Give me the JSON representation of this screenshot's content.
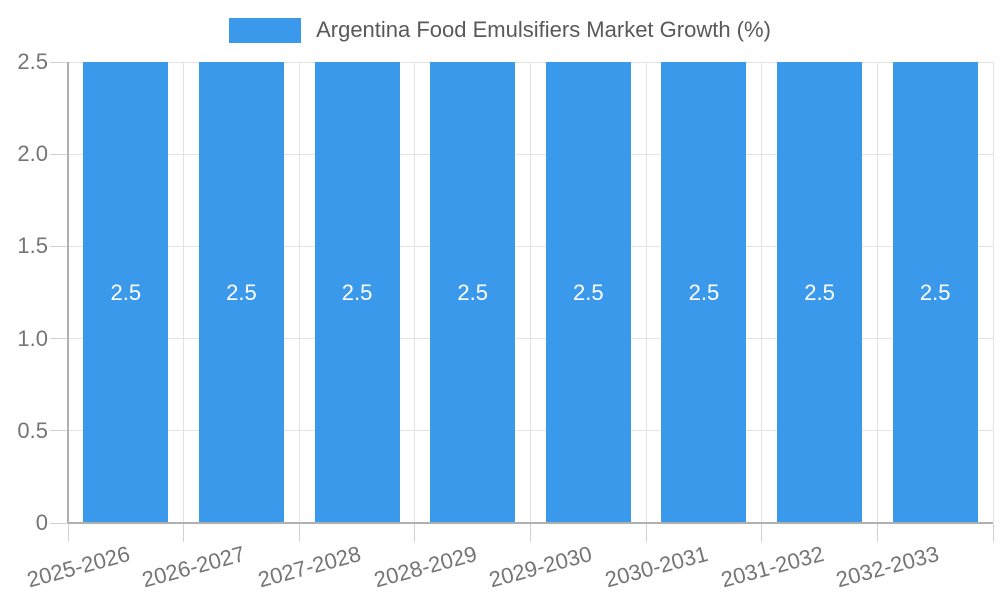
{
  "chart_data": {
    "type": "bar",
    "title": "Argentina Food Emulsifiers Market Growth (%)",
    "categories": [
      "2025-2026",
      "2026-2027",
      "2027-2028",
      "2028-2029",
      "2029-2030",
      "2030-2031",
      "2031-2032",
      "2032-2033"
    ],
    "values": [
      2.5,
      2.5,
      2.5,
      2.5,
      2.5,
      2.5,
      2.5,
      2.5
    ],
    "bar_value_labels": [
      "2.5",
      "2.5",
      "2.5",
      "2.5",
      "2.5",
      "2.5",
      "2.5",
      "2.5"
    ],
    "xlabel": "",
    "ylabel": "",
    "ylim": [
      0,
      2.5
    ],
    "y_ticks": [
      0,
      0.5,
      1.0,
      1.5,
      2.0,
      2.5
    ],
    "y_tick_labels": [
      "0",
      "0.5",
      "1.0",
      "1.5",
      "2.0",
      "2.5"
    ],
    "grid": true,
    "legend_position": "top-center",
    "colors": {
      "bar": "#3b99ec",
      "bar_label": "#ffffff",
      "grid": "#e3e3e3",
      "tick": "#d2d2d2",
      "axis": "#b0b0b0",
      "axis_label": "#757575",
      "legend_text": "#58595b",
      "background": "#ffffff"
    }
  }
}
